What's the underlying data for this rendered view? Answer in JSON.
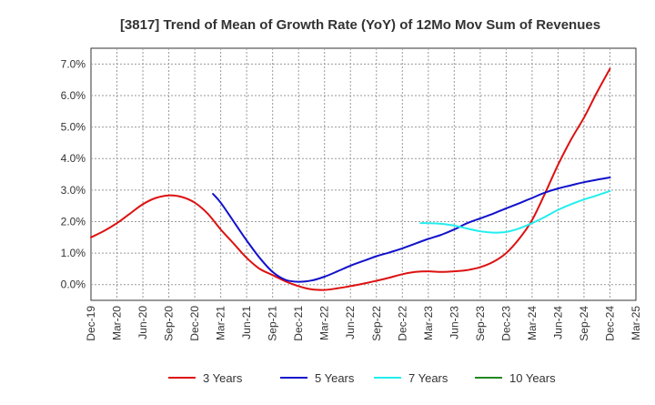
{
  "chart_data": {
    "type": "line",
    "title": "[3817]  Trend of Mean of Growth Rate (YoY) of 12Mo Mov Sum of Revenues",
    "xlabel": "",
    "ylabel": "",
    "ylim": [
      -0.5,
      7.5
    ],
    "y_ticks": [
      0,
      1,
      2,
      3,
      4,
      5,
      6,
      7
    ],
    "y_tick_labels": [
      "0.0%",
      "1.0%",
      "2.0%",
      "3.0%",
      "4.0%",
      "5.0%",
      "6.0%",
      "7.0%"
    ],
    "x_tick_labels": [
      "Dec-19",
      "Mar-20",
      "Jun-20",
      "Sep-20",
      "Dec-20",
      "Mar-21",
      "Jun-21",
      "Sep-21",
      "Dec-21",
      "Mar-22",
      "Jun-22",
      "Sep-22",
      "Dec-22",
      "Mar-23",
      "Jun-23",
      "Sep-23",
      "Dec-23",
      "Mar-24",
      "Jun-24",
      "Sep-24",
      "Dec-24",
      "Mar-25"
    ],
    "grid": true,
    "legend_position": "bottom",
    "series": [
      {
        "name": "3 Years",
        "color": "#dd1111",
        "points": [
          [
            0,
            1.5
          ],
          [
            0.5,
            1.7
          ],
          [
            1,
            1.95
          ],
          [
            1.5,
            2.25
          ],
          [
            2,
            2.55
          ],
          [
            2.5,
            2.75
          ],
          [
            3,
            2.83
          ],
          [
            3.5,
            2.78
          ],
          [
            4,
            2.6
          ],
          [
            4.5,
            2.25
          ],
          [
            5,
            1.75
          ],
          [
            5.5,
            1.3
          ],
          [
            6,
            0.85
          ],
          [
            6.5,
            0.5
          ],
          [
            7,
            0.3
          ],
          [
            7.5,
            0.1
          ],
          [
            8,
            -0.05
          ],
          [
            8.5,
            -0.15
          ],
          [
            9,
            -0.17
          ],
          [
            9.5,
            -0.12
          ],
          [
            10,
            -0.05
          ],
          [
            10.5,
            0.03
          ],
          [
            11,
            0.12
          ],
          [
            11.5,
            0.22
          ],
          [
            12,
            0.33
          ],
          [
            12.5,
            0.4
          ],
          [
            13,
            0.42
          ],
          [
            13.5,
            0.4
          ],
          [
            14,
            0.42
          ],
          [
            14.5,
            0.46
          ],
          [
            15,
            0.55
          ],
          [
            15.5,
            0.72
          ],
          [
            16,
            1.0
          ],
          [
            16.5,
            1.45
          ],
          [
            17,
            2.05
          ],
          [
            17.5,
            2.9
          ],
          [
            18,
            3.8
          ],
          [
            18.5,
            4.6
          ],
          [
            19,
            5.3
          ],
          [
            19.5,
            6.1
          ],
          [
            20,
            6.85
          ]
        ]
      },
      {
        "name": "5 Years",
        "color": "#1111cc",
        "points": [
          [
            4.7,
            2.88
          ],
          [
            5,
            2.6
          ],
          [
            5.5,
            2.0
          ],
          [
            6,
            1.4
          ],
          [
            6.5,
            0.85
          ],
          [
            7,
            0.4
          ],
          [
            7.5,
            0.15
          ],
          [
            8,
            0.09
          ],
          [
            8.5,
            0.13
          ],
          [
            9,
            0.25
          ],
          [
            9.5,
            0.42
          ],
          [
            10,
            0.6
          ],
          [
            10.5,
            0.75
          ],
          [
            11,
            0.9
          ],
          [
            11.5,
            1.02
          ],
          [
            12,
            1.15
          ],
          [
            12.5,
            1.3
          ],
          [
            13,
            1.45
          ],
          [
            13.5,
            1.58
          ],
          [
            14,
            1.75
          ],
          [
            14.5,
            1.95
          ],
          [
            15,
            2.1
          ],
          [
            15.5,
            2.25
          ],
          [
            16,
            2.42
          ],
          [
            16.5,
            2.58
          ],
          [
            17,
            2.75
          ],
          [
            17.5,
            2.92
          ],
          [
            18,
            3.05
          ],
          [
            18.5,
            3.15
          ],
          [
            19,
            3.25
          ],
          [
            20,
            3.4
          ]
        ]
      },
      {
        "name": "7 Years",
        "color": "#22eeee",
        "points": [
          [
            12.7,
            1.95
          ],
          [
            13,
            1.95
          ],
          [
            13.5,
            1.93
          ],
          [
            14,
            1.87
          ],
          [
            14.5,
            1.78
          ],
          [
            15,
            1.69
          ],
          [
            15.5,
            1.65
          ],
          [
            16,
            1.67
          ],
          [
            16.5,
            1.78
          ],
          [
            17,
            1.95
          ],
          [
            17.5,
            2.15
          ],
          [
            18,
            2.37
          ],
          [
            18.5,
            2.55
          ],
          [
            19,
            2.7
          ],
          [
            19.5,
            2.83
          ],
          [
            20,
            2.97
          ]
        ]
      },
      {
        "name": "10 Years",
        "color": "#228822",
        "points": []
      }
    ]
  }
}
